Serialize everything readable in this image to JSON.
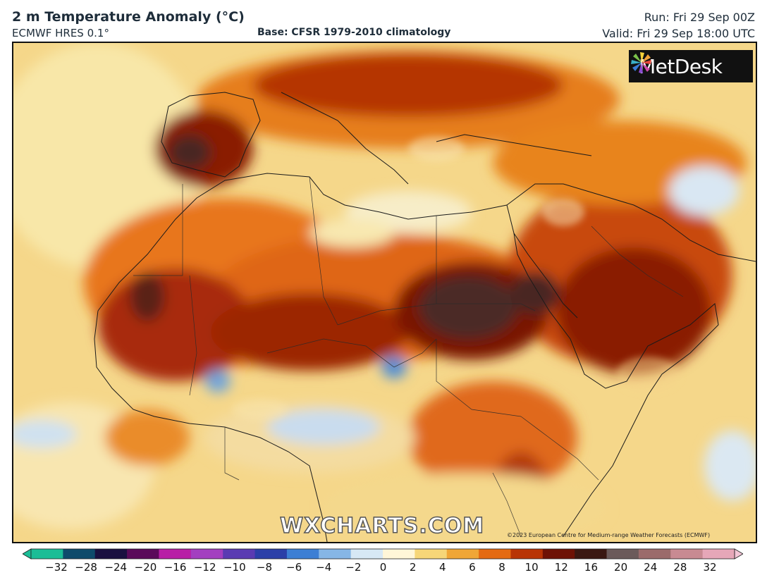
{
  "header": {
    "title": "2 m Temperature Anomaly (°C)",
    "model": "ECMWF HRES 0.1°",
    "base": "Base: CFSR 1979-2010 climatology",
    "run": "Run: Fri 29 Sep 00Z",
    "valid": "Valid: Fri 29 Sep 18:00 UTC"
  },
  "map": {
    "brand": "MetDesk",
    "watermark": "WXCHARTS.COM",
    "copyright": "©2023 European Centre for Medium-range Weather Forecasts (ECMWF)",
    "region": "North Africa & Middle East"
  },
  "colorbar": {
    "ticks": [
      "−32",
      "−28",
      "−24",
      "−20",
      "−16",
      "−12",
      "−10",
      "−8",
      "−6",
      "−4",
      "−2",
      "0",
      "2",
      "4",
      "6",
      "8",
      "10",
      "12",
      "16",
      "20",
      "24",
      "28",
      "32"
    ],
    "colors": [
      "#1bbd96",
      "#0e4b6b",
      "#1a1040",
      "#5a0a5a",
      "#b81fa6",
      "#a33fc0",
      "#5a3bb2",
      "#2b3fa8",
      "#3d7fd4",
      "#86b6e6",
      "#d7e8f5",
      "#fff6d8",
      "#f6d678",
      "#f0a636",
      "#e46a12",
      "#b83406",
      "#6e1206",
      "#3a1812",
      "#6b5a5a",
      "#9b6b6b",
      "#c88a92",
      "#e6a7b8"
    ]
  }
}
